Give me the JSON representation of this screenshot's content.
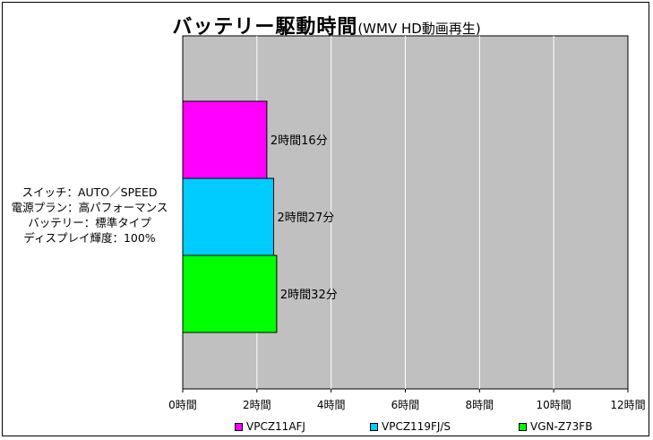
{
  "title": {
    "main": "バッテリー駆動時間",
    "sub": "(WMV HD動画再生)"
  },
  "category_label_lines": [
    "スイッチ：AUTO／SPEED",
    "電源プラン：高パフォーマンス",
    "バッテリー：標準タイプ",
    "ディスプレイ輝度：100%"
  ],
  "chart_data": {
    "type": "bar",
    "orientation": "horizontal",
    "categories": [
      "スイッチ：AUTO／SPEED 電源プラン：高パフォーマンス バッテリー：標準タイプ ディスプレイ輝度：100%"
    ],
    "unit": "時間",
    "series": [
      {
        "name": "VPCZ11AFJ",
        "values": [
          2.267
        ],
        "label": "2時間16分",
        "color": "#ff00ff"
      },
      {
        "name": "VPCZ119FJ/S",
        "values": [
          2.45
        ],
        "label": "2時間27分",
        "color": "#00ccff"
      },
      {
        "name": "VGN-Z73FB",
        "values": [
          2.533
        ],
        "label": "2時間32分",
        "color": "#00ff00"
      }
    ],
    "xlim": [
      0,
      12
    ],
    "xticks": [
      0,
      2,
      4,
      6,
      8,
      10,
      12
    ],
    "xtick_labels": [
      "0時間",
      "2時間",
      "4時間",
      "6時間",
      "8時間",
      "10時間",
      "12時間"
    ],
    "grid": true,
    "legend": "bottom",
    "plot_background": "#c0c0c0",
    "gridline_color": "#ffffff"
  }
}
